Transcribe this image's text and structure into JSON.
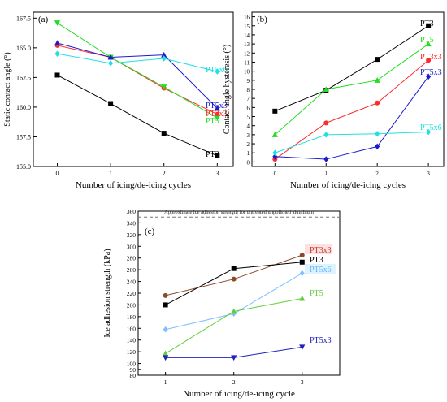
{
  "chart_data": [
    {
      "type": "line",
      "panel_label": "(a)",
      "xlabel": "Number of icing/de-icing cycles",
      "ylabel": "Static contact angle (°)",
      "x": [
        0,
        1,
        2,
        3
      ],
      "x_ticks": [
        "0",
        "1",
        "2",
        "3"
      ],
      "ylim": [
        155.0,
        168.0
      ],
      "y_ticks": [
        "155.0",
        "157.5",
        "160.0",
        "162.5",
        "165.0",
        "167.5"
      ],
      "grid": false,
      "series": [
        {
          "name": "PT3",
          "color": "#000000",
          "marker": "square",
          "values": [
            162.7,
            160.3,
            157.8,
            155.9
          ]
        },
        {
          "name": "PT3x3",
          "color": "#ff2a2a",
          "marker": "circle",
          "values": [
            165.2,
            164.2,
            161.6,
            159.4
          ]
        },
        {
          "name": "PT5",
          "color": "#22dd22",
          "marker": "triangle-down",
          "values": [
            167.1,
            164.2,
            161.7,
            159.1
          ]
        },
        {
          "name": "PT5x3",
          "color": "#1b1bcc",
          "marker": "triangle-up",
          "values": [
            165.4,
            164.2,
            164.4,
            159.9
          ]
        },
        {
          "name": "PT5x6",
          "color": "#22e0e0",
          "marker": "diamond",
          "values": [
            164.5,
            163.7,
            164.1,
            163.0
          ]
        }
      ]
    },
    {
      "type": "line",
      "panel_label": "(b)",
      "xlabel": "Number of icing/de-icing cycles",
      "ylabel": "Contact angle hysteresis (°)",
      "x": [
        0,
        1,
        2,
        3
      ],
      "x_ticks": [
        "0",
        "1",
        "2",
        "3"
      ],
      "ylim": [
        -0.5,
        16.5
      ],
      "y_ticks": [
        "0",
        "1",
        "2",
        "3",
        "4",
        "5",
        "6",
        "7",
        "8",
        "9",
        "10",
        "11",
        "12",
        "13",
        "14",
        "15",
        "16"
      ],
      "grid": false,
      "series": [
        {
          "name": "PT3",
          "color": "#000000",
          "marker": "square",
          "values": [
            5.6,
            7.9,
            11.3,
            15.0
          ]
        },
        {
          "name": "PT3x3",
          "color": "#ff2a2a",
          "marker": "circle",
          "values": [
            0.3,
            4.3,
            6.5,
            11.2
          ]
        },
        {
          "name": "PT5",
          "color": "#22dd22",
          "marker": "triangle-up",
          "values": [
            3.0,
            8.0,
            9.0,
            13.0
          ]
        },
        {
          "name": "PT5x3",
          "color": "#1b1bcc",
          "marker": "diamond",
          "values": [
            0.6,
            0.3,
            1.7,
            9.4
          ]
        },
        {
          "name": "PT5x6",
          "color": "#22e0e0",
          "marker": "diamond",
          "values": [
            1.0,
            3.0,
            3.1,
            3.3
          ]
        }
      ]
    },
    {
      "type": "line",
      "panel_label": "(c)",
      "xlabel": "Number of icing/de-icing cycle",
      "ylabel": "Ice adhesion strength (kPa)",
      "x": [
        1,
        2,
        3
      ],
      "x_ticks": [
        "1",
        "2",
        "3"
      ],
      "ylim": [
        80,
        360
      ],
      "y_ticks": [
        "80",
        "90",
        "100",
        "120",
        "140",
        "160",
        "180",
        "200",
        "220",
        "240",
        "260",
        "280",
        "300",
        "320",
        "340",
        "360"
      ],
      "grid": false,
      "reference_line": {
        "value": 350,
        "label": "Approximate ice adhesion strength for untreated unpolished aluminum"
      },
      "series": [
        {
          "name": "PT3x3",
          "color": "#8b4a2b",
          "label_color": "#c43a2a",
          "marker": "circle",
          "values": [
            216,
            244,
            285
          ]
        },
        {
          "name": "PT3",
          "color": "#000000",
          "marker": "square",
          "values": [
            200,
            262,
            273
          ]
        },
        {
          "name": "PT5x6",
          "color": "#7fbfff",
          "label_color": "#66b8ff",
          "marker": "diamond",
          "values": [
            158,
            185,
            254
          ]
        },
        {
          "name": "PT5",
          "color": "#5fcf3a",
          "marker": "triangle-up",
          "values": [
            117,
            189,
            211
          ]
        },
        {
          "name": "PT5x3",
          "color": "#2222bb",
          "marker": "triangle-down",
          "values": [
            110,
            110,
            128
          ]
        }
      ]
    }
  ]
}
